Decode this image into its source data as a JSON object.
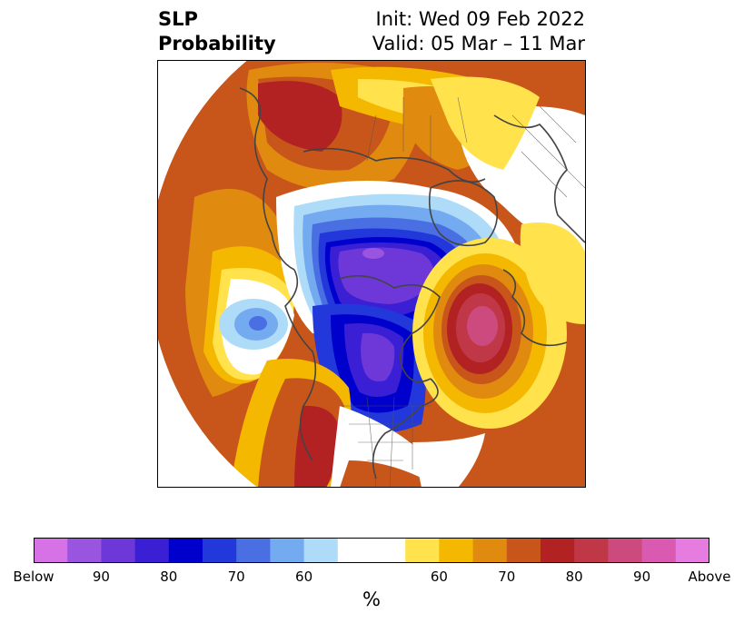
{
  "title": {
    "line1": "SLP",
    "line2": "Probability",
    "init": "Init: Wed 09 Feb 2022",
    "valid": "Valid: 05 Mar – 11 Mar"
  },
  "colorbar": {
    "colors": [
      "#d672e6",
      "#9a55e0",
      "#6e38d8",
      "#3a1fd4",
      "#0000cc",
      "#2238db",
      "#4a6fe2",
      "#74aaf0",
      "#aedcf8",
      "#ffffff",
      "#ffffff",
      "#ffe24c",
      "#f5b800",
      "#e08a10",
      "#c8561a",
      "#b22222",
      "#c03848",
      "#cc4a7e",
      "#d95ab0",
      "#e67be0"
    ],
    "tick_labels": [
      "Below",
      "90",
      "80",
      "70",
      "60",
      "60",
      "70",
      "80",
      "90",
      "Above"
    ],
    "units": "%"
  },
  "map": {
    "projection": "polar-stereographic",
    "colors": {
      "neg_light": "#aedcf8",
      "neg_1": "#74aaf0",
      "neg_2": "#4a6fe2",
      "neg_3": "#2238db",
      "neg_4": "#0000cc",
      "neg_5": "#3a1fd4",
      "neg_6": "#6e38d8",
      "neg_7": "#9a55e0",
      "pos_1": "#ffe24c",
      "pos_2": "#f5b800",
      "pos_3": "#e08a10",
      "pos_4": "#c8561a",
      "pos_5": "#b22222",
      "pos_6": "#c03848",
      "pos_7": "#cc4a7e",
      "coast": "#444444"
    }
  }
}
